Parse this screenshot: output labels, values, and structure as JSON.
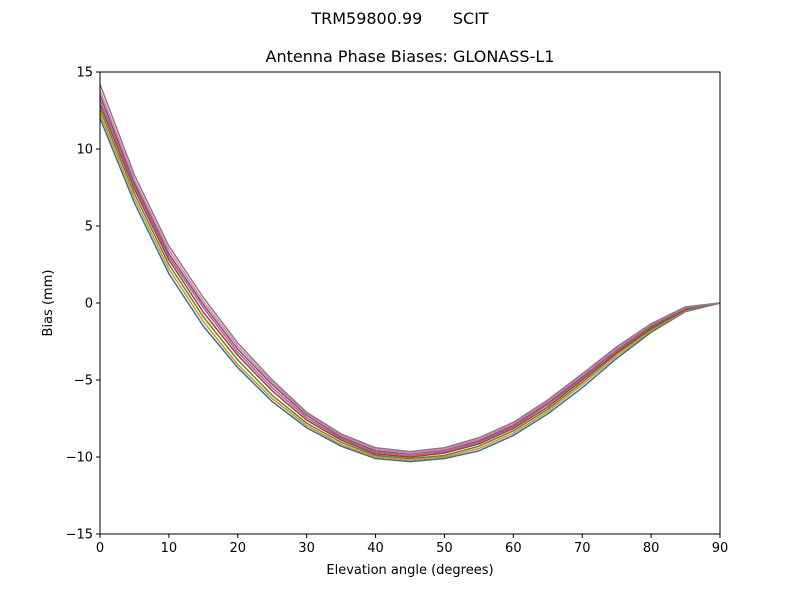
{
  "figure": {
    "suptitle": "TRM59800.99      SCIT",
    "title": "Antenna Phase Biases: GLONASS-L1"
  },
  "chart_data": {
    "type": "line",
    "title": "Antenna Phase Biases: GLONASS-L1",
    "xlabel": "Elevation angle (degrees)",
    "ylabel": "Bias (mm)",
    "xlim": [
      0,
      90
    ],
    "ylim": [
      -15,
      15
    ],
    "xticks": [
      0,
      10,
      20,
      30,
      40,
      50,
      60,
      70,
      80,
      90
    ],
    "yticks": [
      -15,
      -10,
      -5,
      0,
      5,
      10,
      15
    ],
    "ytick_labels": [
      "−15",
      "−10",
      "−5",
      "0",
      "5",
      "10",
      "15"
    ],
    "grid": false,
    "legend": "none",
    "colors": [
      "#1f77b4",
      "#ff7f0e",
      "#2ca02c",
      "#d62728",
      "#9467bd",
      "#8c564b",
      "#e377c2",
      "#7f7f7f",
      "#bcbd22",
      "#17becf"
    ],
    "x": [
      0,
      5,
      10,
      15,
      20,
      25,
      30,
      35,
      40,
      45,
      50,
      55,
      60,
      65,
      70,
      75,
      80,
      85,
      90
    ],
    "series": [
      {
        "values": [
          12.0,
          6.5,
          1.9,
          -1.5,
          -4.2,
          -6.4,
          -8.1,
          -9.3,
          -10.1,
          -10.3,
          -10.1,
          -9.6,
          -8.6,
          -7.2,
          -5.5,
          -3.6,
          -1.9,
          -0.55,
          0
        ]
      },
      {
        "values": [
          12.3,
          6.8,
          2.2,
          -1.2,
          -4.0,
          -6.2,
          -7.95,
          -9.2,
          -10.0,
          -10.2,
          -10.0,
          -9.45,
          -8.45,
          -7.05,
          -5.3,
          -3.45,
          -1.8,
          -0.5,
          0
        ]
      },
      {
        "values": [
          12.6,
          7.1,
          2.5,
          -0.9,
          -3.7,
          -6.0,
          -7.8,
          -9.05,
          -9.9,
          -10.1,
          -9.9,
          -9.3,
          -8.3,
          -6.9,
          -5.15,
          -3.3,
          -1.7,
          -0.45,
          0
        ]
      },
      {
        "values": [
          12.9,
          7.4,
          2.8,
          -0.6,
          -3.4,
          -5.7,
          -7.6,
          -8.9,
          -9.8,
          -10.0,
          -9.75,
          -9.15,
          -8.15,
          -6.75,
          -5.0,
          -3.2,
          -1.6,
          -0.4,
          0
        ]
      },
      {
        "values": [
          13.2,
          7.6,
          3.0,
          -0.3,
          -3.2,
          -5.5,
          -7.45,
          -8.8,
          -9.7,
          -9.9,
          -9.65,
          -9.05,
          -8.05,
          -6.6,
          -4.9,
          -3.1,
          -1.5,
          -0.35,
          0
        ]
      },
      {
        "values": [
          13.5,
          7.8,
          3.2,
          -0.1,
          -3.0,
          -5.3,
          -7.3,
          -8.7,
          -9.6,
          -9.8,
          -9.55,
          -8.95,
          -7.95,
          -6.5,
          -4.8,
          -3.0,
          -1.45,
          -0.3,
          0
        ]
      },
      {
        "values": [
          13.8,
          8.0,
          3.45,
          0.1,
          -2.8,
          -5.15,
          -7.2,
          -8.6,
          -9.5,
          -9.75,
          -9.5,
          -8.85,
          -7.85,
          -6.4,
          -4.7,
          -2.95,
          -1.4,
          -0.28,
          0
        ]
      },
      {
        "values": [
          14.2,
          8.3,
          3.7,
          0.35,
          -2.6,
          -5.0,
          -7.1,
          -8.5,
          -9.4,
          -9.65,
          -9.4,
          -8.75,
          -7.75,
          -6.3,
          -4.6,
          -2.85,
          -1.35,
          -0.25,
          0
        ]
      }
    ]
  }
}
